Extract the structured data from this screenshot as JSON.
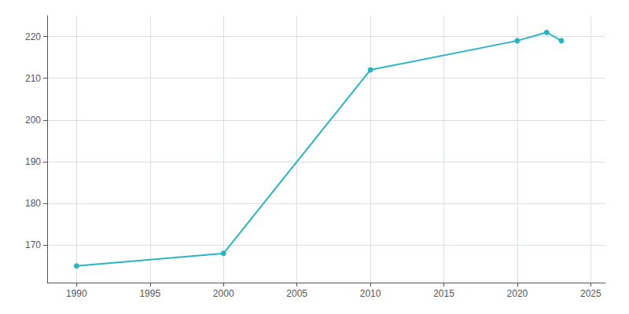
{
  "chart_data": {
    "type": "line",
    "x": [
      1990,
      2000,
      2010,
      2020,
      2022,
      2023
    ],
    "values": [
      165,
      168,
      212,
      219,
      221,
      219
    ],
    "color": "#2ab5c0",
    "marker": "circle",
    "xlim": [
      1988,
      2026
    ],
    "ylim": [
      161,
      225
    ],
    "xticks": [
      1990,
      1995,
      2000,
      2005,
      2010,
      2015,
      2020,
      2025
    ],
    "yticks": [
      170,
      180,
      190,
      200,
      210,
      220
    ],
    "grid": true
  }
}
